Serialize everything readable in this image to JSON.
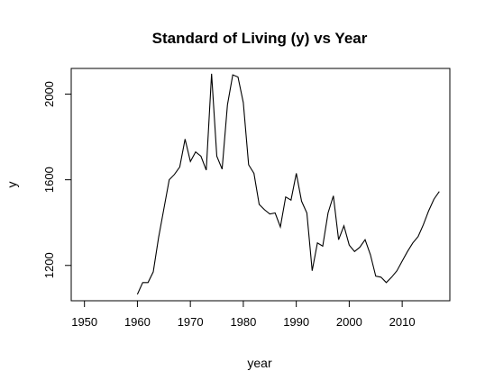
{
  "chart_data": {
    "type": "line",
    "title": "Standard of Living (y) vs Year",
    "xlabel": "year",
    "ylabel": "y",
    "xlim": [
      1947.5,
      2019
    ],
    "ylim": [
      1035,
      2120
    ],
    "x_ticks": [
      1950,
      1960,
      1970,
      1980,
      1990,
      2000,
      2010
    ],
    "y_ticks": [
      1200,
      1600,
      2000
    ],
    "grid": false,
    "legend": "none",
    "line_color": "#000000",
    "series": [
      {
        "x": [
          1960,
          1961,
          1962,
          1963,
          1964,
          1965,
          1966,
          1967,
          1968,
          1969,
          1970,
          1971,
          1972,
          1973,
          1974,
          1975,
          1976,
          1977,
          1978,
          1979,
          1980,
          1981,
          1982,
          1983,
          1984,
          1985,
          1986,
          1987,
          1988,
          1989,
          1990,
          1991,
          1992,
          1993,
          1994,
          1995,
          1996,
          1997,
          1998,
          1999,
          2000,
          2001,
          2002,
          2003,
          2004,
          2005,
          2006,
          2007,
          2008,
          2009,
          2010,
          2011,
          2012,
          2013,
          2014,
          2015,
          2016,
          2017
        ],
        "values": [
          1065,
          1120,
          1120,
          1170,
          1330,
          1465,
          1600,
          1625,
          1660,
          1790,
          1685,
          1730,
          1710,
          1645,
          2095,
          1710,
          1650,
          1950,
          2090,
          2080,
          1960,
          1670,
          1630,
          1485,
          1460,
          1440,
          1445,
          1380,
          1520,
          1505,
          1630,
          1500,
          1445,
          1175,
          1305,
          1290,
          1445,
          1525,
          1320,
          1385,
          1295,
          1265,
          1285,
          1320,
          1250,
          1150,
          1145,
          1120,
          1145,
          1175,
          1220,
          1265,
          1305,
          1335,
          1390,
          1455,
          1510,
          1545
        ]
      }
    ]
  }
}
